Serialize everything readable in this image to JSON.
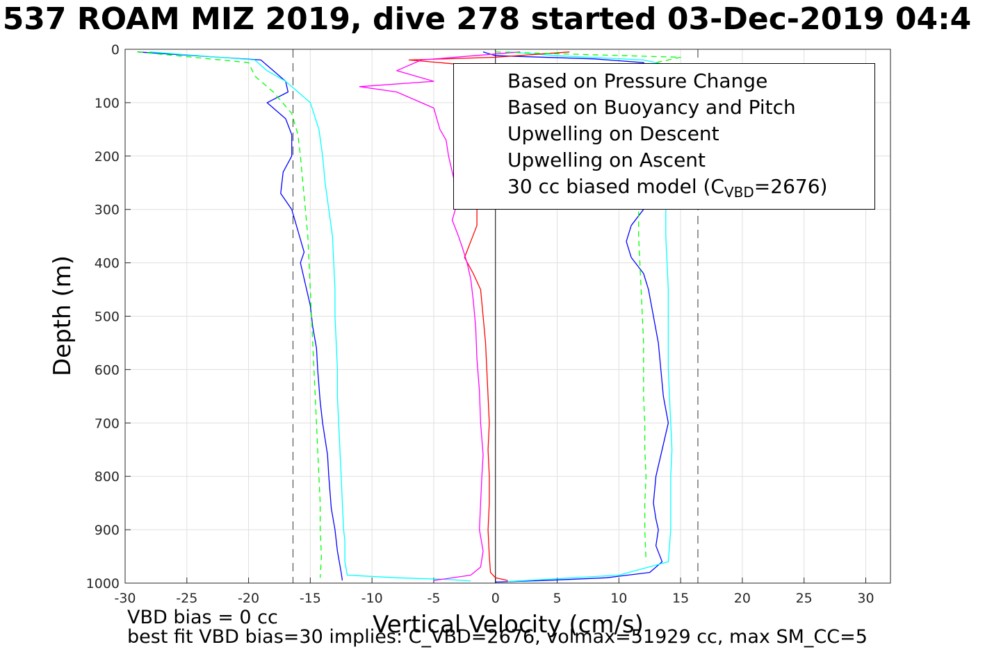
{
  "chart_data": {
    "type": "line",
    "title": "537 ROAM MIZ 2019, dive 278 started 03-Dec-2019 04:4",
    "xlabel": "Vertical Velocity (cm/s)",
    "ylabel": "Depth (m)",
    "xlim": [
      -30,
      32
    ],
    "ylim": [
      0,
      1000
    ],
    "y_reversed": true,
    "grid": true,
    "x_ticks": [
      "-30",
      "-25",
      "-20",
      "-15",
      "-10",
      "-5",
      "0",
      "5",
      "10",
      "15",
      "20",
      "25",
      "30"
    ],
    "y_ticks": [
      "0",
      "100",
      "200",
      "300",
      "400",
      "500",
      "600",
      "700",
      "800",
      "900",
      "1000"
    ],
    "reference_lines_x": [
      -16.4,
      0,
      16.4
    ],
    "legend_position": "top-right",
    "series": [
      {
        "name": "Based on Pressure Change",
        "color": "#0000ff",
        "style": "solid",
        "branches": [
          {
            "x": [
              -29,
              -19,
              -18,
              -17,
              -16.8,
              -18.5,
              -17,
              -16.5,
              -16.5,
              -17.2,
              -17.4,
              -16.5,
              -16,
              -15.5,
              -15.8,
              -15.4,
              -15,
              -14.8,
              -14.5,
              -14.4,
              -14.2,
              -14,
              -13.6,
              -13.5,
              -13.3,
              -13,
              -12.8,
              -12.5,
              -12.4
            ],
            "y": [
              5,
              20,
              40,
              60,
              80,
              100,
              130,
              160,
              200,
              230,
              270,
              300,
              340,
              380,
              400,
              440,
              480,
              520,
              560,
              600,
              660,
              700,
              760,
              800,
              860,
              900,
              940,
              980,
              995
            ]
          },
          {
            "x": [
              -1,
              0,
              8,
              12,
              13.3,
              13.5,
              13,
              12.5,
              12,
              11,
              10.6,
              11,
              12,
              12.4,
              12.8,
              13.2,
              13.4,
              13.6,
              14,
              13.5,
              13,
              12.8,
              13,
              13.2,
              13,
              13.5,
              12.5,
              9,
              4,
              0
            ],
            "y": [
              5,
              12,
              18,
              25,
              60,
              120,
              180,
              250,
              300,
              330,
              360,
              390,
              420,
              450,
              500,
              550,
              600,
              650,
              700,
              750,
              800,
              850,
              880,
              900,
              930,
              960,
              980,
              990,
              995,
              998
            ]
          }
        ]
      },
      {
        "name": "Based on Buoyancy and Pitch",
        "color": "#00ffff",
        "style": "solid",
        "branches": [
          {
            "x": [
              -28,
              -19.5,
              -18.5,
              -17,
              -15,
              -14.3,
              -14,
              -13.8,
              -13.5,
              -13.2,
              -13.1,
              -13,
              -13,
              -12.9,
              -12.8,
              -12.8,
              -12.7,
              -12.6,
              -12.5,
              -12.4,
              -12.3,
              -12.2,
              -12.2,
              -12,
              -8,
              -4,
              -2
            ],
            "y": [
              5,
              20,
              40,
              60,
              100,
              150,
              200,
              250,
              300,
              350,
              400,
              450,
              500,
              550,
              600,
              650,
              700,
              750,
              800,
              850,
              900,
              920,
              960,
              985,
              990,
              993,
              996
            ]
          },
          {
            "x": [
              1,
              5,
              12,
              14,
              14.2,
              14,
              13.8,
              13.8,
              13.9,
              14,
              14,
              14,
              14,
              14.1,
              14.2,
              14.3,
              14.2,
              14.2,
              14.2,
              14,
              10,
              4,
              1
            ],
            "y": [
              5,
              12,
              20,
              30,
              100,
              200,
              300,
              350,
              400,
              450,
              500,
              550,
              600,
              650,
              700,
              750,
              800,
              850,
              900,
              960,
              985,
              993,
              997
            ]
          }
        ]
      },
      {
        "name": "Upwelling on Descent",
        "color": "#ff0000",
        "style": "solid",
        "branches": [
          {
            "x": [
              6,
              0,
              -7,
              -2,
              -1.5,
              -1.5,
              -2,
              -2.5,
              -1.8,
              -1.2,
              -1,
              -0.8,
              -0.7,
              -0.6,
              -0.5,
              -0.6,
              -0.5,
              -0.5,
              -0.6,
              -0.5,
              -0.4,
              0,
              1
            ],
            "y": [
              5,
              15,
              20,
              30,
              300,
              330,
              360,
              390,
              420,
              450,
              500,
              550,
              600,
              650,
              700,
              750,
              800,
              850,
              900,
              950,
              980,
              990,
              995
            ]
          }
        ]
      },
      {
        "name": "Upwelling on Ascent",
        "color": "#ff00ff",
        "style": "solid",
        "branches": [
          {
            "x": [
              2,
              -6,
              -8,
              -5,
              -11,
              -8,
              -5,
              -4.5,
              -4,
              -3.8,
              -3.5,
              -3.2,
              -3,
              -3.5,
              -3,
              -2.7,
              -2.3,
              -2,
              -1.8,
              -1.6,
              -1.5,
              -1.3,
              -1.2,
              -1,
              -1.1,
              -1.2,
              -1.3,
              -1,
              -1.2,
              -2,
              -5
            ],
            "y": [
              5,
              20,
              40,
              60,
              70,
              80,
              110,
              150,
              170,
              200,
              230,
              260,
              280,
              320,
              350,
              370,
              400,
              430,
              470,
              520,
              580,
              640,
              700,
              760,
              800,
              850,
              900,
              940,
              970,
              985,
              995
            ]
          }
        ]
      },
      {
        "name": "30 cc biased model (C_VBD=2676)",
        "color": "#00ff00",
        "style": "dashed",
        "branches": [
          {
            "x": [
              -29,
              -20,
              -19.5,
              -18,
              -16.5,
              -16,
              -15.8,
              -15.6,
              -15.4,
              -15.2,
              -15.1,
              -15,
              -14.9,
              -14.8,
              -14.7,
              -14.6,
              -14.5,
              -14.4,
              -14.3,
              -14.2,
              -14.2,
              -14.1,
              -14.2
            ],
            "y": [
              5,
              25,
              50,
              80,
              120,
              160,
              200,
              250,
              300,
              350,
              400,
              450,
              500,
              550,
              600,
              650,
              700,
              750,
              800,
              850,
              900,
              950,
              990
            ]
          },
          {
            "x": [
              0,
              15,
              12,
              11.6,
              11.6,
              11.7,
              11.8,
              11.9,
              12,
              12,
              12,
              12.1,
              12.1,
              12.2,
              12.1,
              12.1,
              12.2
            ],
            "y": [
              5,
              15,
              30,
              300,
              350,
              400,
              450,
              500,
              550,
              600,
              650,
              700,
              750,
              800,
              850,
              900,
              960
            ]
          }
        ]
      }
    ]
  },
  "legend": {
    "items": [
      {
        "label": "Based on Pressure Change",
        "color": "#0000ff",
        "dash": ""
      },
      {
        "label": "Based on Buoyancy and Pitch",
        "color": "#00ffff",
        "dash": ""
      },
      {
        "label": "Upwelling on Descent",
        "color": "#ff0000",
        "dash": ""
      },
      {
        "label": "Upwelling on Ascent",
        "color": "#ff00ff",
        "dash": ""
      }
    ],
    "model_prefix": "30 cc biased model (C",
    "model_sub": "VBD",
    "model_suffix": "=2676)"
  },
  "notes": {
    "line1": "VBD bias = 0 cc",
    "line2": "best fit VBD bias=30 implies: C_VBD=2676, volmax=51929 cc, max SM_CC=5"
  }
}
